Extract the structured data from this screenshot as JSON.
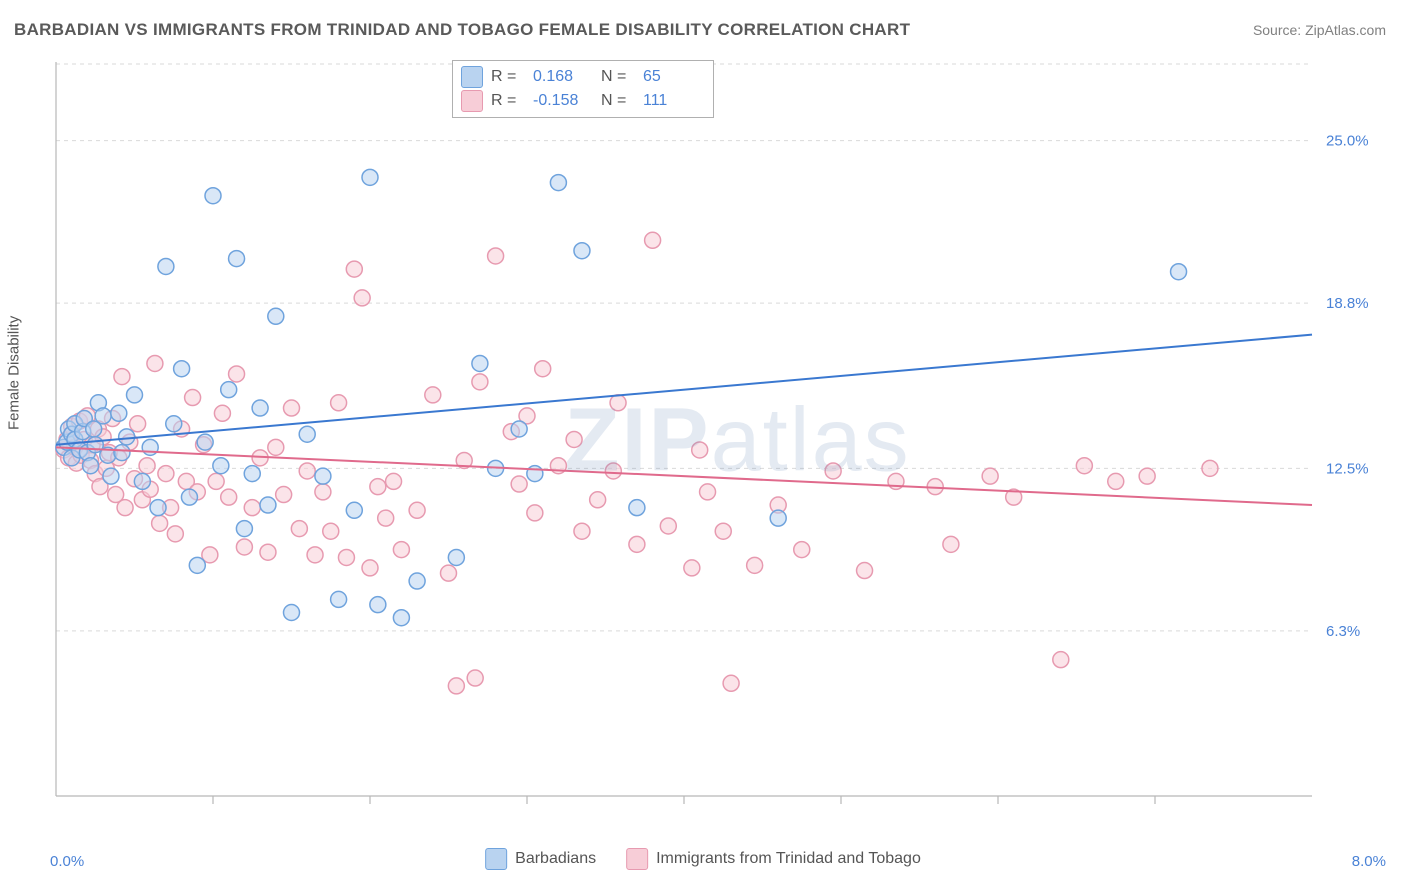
{
  "title": "BARBADIAN VS IMMIGRANTS FROM TRINIDAD AND TOBAGO FEMALE DISABILITY CORRELATION CHART",
  "source": "Source: ZipAtlas.com",
  "watermark": "ZIPatlas",
  "ylabel": "Female Disability",
  "chart": {
    "type": "scatter",
    "xlim": [
      0,
      8
    ],
    "ylim": [
      0,
      28
    ],
    "y_ticks": [
      6.3,
      12.5,
      18.8,
      25.0
    ],
    "y_tick_labels": [
      "6.3%",
      "12.5%",
      "18.8%",
      "25.0%"
    ],
    "x_ticks": [
      1,
      2,
      3,
      4,
      5,
      6,
      7
    ],
    "x_min_label": "0.0%",
    "x_max_label": "8.0%",
    "background_color": "#ffffff",
    "grid_color": "#d9d9d9",
    "grid_dash": "4 4",
    "axis_line_color": "#b8b8b8",
    "tick_label_color": "#4a82d6",
    "marker_radius": 8,
    "marker_stroke_width": 1.5,
    "marker_fill_opacity": 0.25,
    "trend_line_width": 2,
    "series": [
      {
        "name": "Barbadians",
        "color_fill": "#b9d3f0",
        "color_stroke": "#6fa3dd",
        "trend_color": "#3a78d0",
        "R": 0.168,
        "N": 65,
        "trend": {
          "y_at_xmin": 13.4,
          "y_at_xmax": 17.6
        },
        "points": [
          [
            0.05,
            13.3
          ],
          [
            0.07,
            13.5
          ],
          [
            0.08,
            14.0
          ],
          [
            0.1,
            13.8
          ],
          [
            0.1,
            12.9
          ],
          [
            0.12,
            13.6
          ],
          [
            0.12,
            14.2
          ],
          [
            0.15,
            13.2
          ],
          [
            0.17,
            13.9
          ],
          [
            0.18,
            14.4
          ],
          [
            0.2,
            13.1
          ],
          [
            0.22,
            12.6
          ],
          [
            0.24,
            14.0
          ],
          [
            0.25,
            13.4
          ],
          [
            0.27,
            15.0
          ],
          [
            0.3,
            14.5
          ],
          [
            0.33,
            13.0
          ],
          [
            0.35,
            12.2
          ],
          [
            0.4,
            14.6
          ],
          [
            0.42,
            13.1
          ],
          [
            0.45,
            13.7
          ],
          [
            0.5,
            15.3
          ],
          [
            0.55,
            12.0
          ],
          [
            0.6,
            13.3
          ],
          [
            0.65,
            11.0
          ],
          [
            0.7,
            20.2
          ],
          [
            0.75,
            14.2
          ],
          [
            0.8,
            16.3
          ],
          [
            0.85,
            11.4
          ],
          [
            0.9,
            8.8
          ],
          [
            0.95,
            13.5
          ],
          [
            1.0,
            22.9
          ],
          [
            1.05,
            12.6
          ],
          [
            1.1,
            15.5
          ],
          [
            1.15,
            20.5
          ],
          [
            1.2,
            10.2
          ],
          [
            1.25,
            12.3
          ],
          [
            1.3,
            14.8
          ],
          [
            1.35,
            11.1
          ],
          [
            1.4,
            18.3
          ],
          [
            1.5,
            7.0
          ],
          [
            1.6,
            13.8
          ],
          [
            1.7,
            12.2
          ],
          [
            1.8,
            7.5
          ],
          [
            1.9,
            10.9
          ],
          [
            2.0,
            23.6
          ],
          [
            2.05,
            7.3
          ],
          [
            2.2,
            6.8
          ],
          [
            2.3,
            8.2
          ],
          [
            2.55,
            9.1
          ],
          [
            2.7,
            16.5
          ],
          [
            2.8,
            12.5
          ],
          [
            2.95,
            14.0
          ],
          [
            3.05,
            12.3
          ],
          [
            3.2,
            23.4
          ],
          [
            3.35,
            20.8
          ],
          [
            3.7,
            11.0
          ],
          [
            4.6,
            10.6
          ],
          [
            7.15,
            20.0
          ]
        ]
      },
      {
        "name": "Immigrants from Trinidad and Tobago",
        "color_fill": "#f7cdd7",
        "color_stroke": "#e79ab0",
        "trend_color": "#e06a8c",
        "R": -0.158,
        "N": 111,
        "trend": {
          "y_at_xmin": 13.3,
          "y_at_xmax": 11.1
        },
        "points": [
          [
            0.05,
            13.2
          ],
          [
            0.07,
            13.6
          ],
          [
            0.08,
            12.9
          ],
          [
            0.1,
            13.8
          ],
          [
            0.1,
            14.1
          ],
          [
            0.12,
            13.3
          ],
          [
            0.13,
            12.7
          ],
          [
            0.15,
            14.3
          ],
          [
            0.16,
            13.0
          ],
          [
            0.18,
            13.6
          ],
          [
            0.2,
            14.5
          ],
          [
            0.22,
            12.8
          ],
          [
            0.23,
            13.4
          ],
          [
            0.25,
            12.3
          ],
          [
            0.27,
            14.0
          ],
          [
            0.28,
            11.8
          ],
          [
            0.3,
            13.7
          ],
          [
            0.32,
            12.5
          ],
          [
            0.34,
            13.1
          ],
          [
            0.36,
            14.4
          ],
          [
            0.38,
            11.5
          ],
          [
            0.4,
            12.9
          ],
          [
            0.42,
            16.0
          ],
          [
            0.44,
            11.0
          ],
          [
            0.47,
            13.5
          ],
          [
            0.5,
            12.1
          ],
          [
            0.52,
            14.2
          ],
          [
            0.55,
            11.3
          ],
          [
            0.58,
            12.6
          ],
          [
            0.6,
            11.7
          ],
          [
            0.63,
            16.5
          ],
          [
            0.66,
            10.4
          ],
          [
            0.7,
            12.3
          ],
          [
            0.73,
            11.0
          ],
          [
            0.76,
            10.0
          ],
          [
            0.8,
            14.0
          ],
          [
            0.83,
            12.0
          ],
          [
            0.87,
            15.2
          ],
          [
            0.9,
            11.6
          ],
          [
            0.94,
            13.4
          ],
          [
            0.98,
            9.2
          ],
          [
            1.02,
            12.0
          ],
          [
            1.06,
            14.6
          ],
          [
            1.1,
            11.4
          ],
          [
            1.15,
            16.1
          ],
          [
            1.2,
            9.5
          ],
          [
            1.25,
            11.0
          ],
          [
            1.3,
            12.9
          ],
          [
            1.35,
            9.3
          ],
          [
            1.4,
            13.3
          ],
          [
            1.45,
            11.5
          ],
          [
            1.5,
            14.8
          ],
          [
            1.55,
            10.2
          ],
          [
            1.6,
            12.4
          ],
          [
            1.65,
            9.2
          ],
          [
            1.7,
            11.6
          ],
          [
            1.75,
            10.1
          ],
          [
            1.8,
            15.0
          ],
          [
            1.85,
            9.1
          ],
          [
            1.9,
            20.1
          ],
          [
            1.95,
            19.0
          ],
          [
            2.0,
            8.7
          ],
          [
            2.05,
            11.8
          ],
          [
            2.1,
            10.6
          ],
          [
            2.15,
            12.0
          ],
          [
            2.2,
            9.4
          ],
          [
            2.3,
            10.9
          ],
          [
            2.4,
            15.3
          ],
          [
            2.5,
            8.5
          ],
          [
            2.55,
            4.2
          ],
          [
            2.6,
            12.8
          ],
          [
            2.67,
            4.5
          ],
          [
            2.7,
            15.8
          ],
          [
            2.8,
            20.6
          ],
          [
            2.9,
            13.9
          ],
          [
            2.95,
            11.9
          ],
          [
            3.0,
            14.5
          ],
          [
            3.05,
            10.8
          ],
          [
            3.1,
            16.3
          ],
          [
            3.2,
            12.6
          ],
          [
            3.3,
            13.6
          ],
          [
            3.35,
            10.1
          ],
          [
            3.45,
            11.3
          ],
          [
            3.55,
            12.4
          ],
          [
            3.58,
            15.0
          ],
          [
            3.7,
            9.6
          ],
          [
            3.8,
            21.2
          ],
          [
            3.9,
            10.3
          ],
          [
            4.05,
            8.7
          ],
          [
            4.1,
            13.2
          ],
          [
            4.15,
            11.6
          ],
          [
            4.25,
            10.1
          ],
          [
            4.3,
            4.3
          ],
          [
            4.45,
            8.8
          ],
          [
            4.6,
            11.1
          ],
          [
            4.75,
            9.4
          ],
          [
            4.95,
            12.4
          ],
          [
            5.15,
            8.6
          ],
          [
            5.35,
            12.0
          ],
          [
            5.6,
            11.8
          ],
          [
            5.7,
            9.6
          ],
          [
            5.95,
            12.2
          ],
          [
            6.1,
            11.4
          ],
          [
            6.4,
            5.2
          ],
          [
            6.55,
            12.6
          ],
          [
            6.75,
            12.0
          ],
          [
            6.95,
            12.2
          ],
          [
            7.35,
            12.5
          ]
        ]
      }
    ]
  },
  "legend_top": {
    "rows": [
      {
        "R_label": "R =",
        "R_value": "0.168",
        "N_label": "N =",
        "N_value": "65"
      },
      {
        "R_label": "R =",
        "R_value": "-0.158",
        "N_label": "N =",
        "N_value": "111"
      }
    ]
  },
  "legend_bottom": {
    "items": [
      "Barbadians",
      "Immigrants from Trinidad and Tobago"
    ]
  }
}
